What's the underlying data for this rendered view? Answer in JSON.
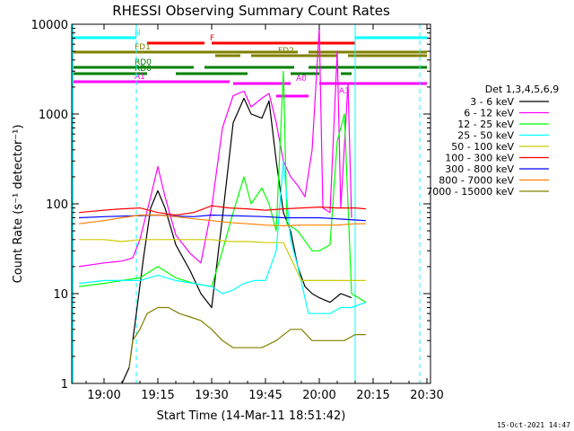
{
  "chart_data": {
    "type": "line",
    "title": "RHESSI Observing Summary Count Rates",
    "xlabel": "Start Time (14-Mar-11 18:51:42)",
    "ylabel": "Count Rate (s⁻¹ detector⁻¹)",
    "date_stamp": "15-Oct-2021 14:47",
    "x_unit": "minutes of day (HH:MM)",
    "xlim": [
      "18:51",
      "20:31"
    ],
    "ylim": [
      1,
      10000
    ],
    "yscale": "log",
    "grid": false,
    "legend_placement": "right",
    "legend_header": "Det 1,3,4,5,6,9",
    "x_ticks": [
      "19:00",
      "19:15",
      "19:30",
      "19:45",
      "20:00",
      "20:15",
      "20:30"
    ],
    "y_ticks": [
      "1",
      "10",
      "100",
      "1000",
      "10000"
    ],
    "series": [
      {
        "name": "3 - 6 keV",
        "color": "#000000",
        "points": [
          [
            "19:05",
            1
          ],
          [
            "19:07",
            1.5
          ],
          [
            "19:09",
            6
          ],
          [
            "19:11",
            25
          ],
          [
            "19:13",
            90
          ],
          [
            "19:15",
            140
          ],
          [
            "19:17",
            90
          ],
          [
            "19:20",
            35
          ],
          [
            "19:24",
            18
          ],
          [
            "19:27",
            10
          ],
          [
            "19:30",
            7
          ],
          [
            "19:33",
            70
          ],
          [
            "19:36",
            800
          ],
          [
            "19:39",
            1500
          ],
          [
            "19:41",
            1000
          ],
          [
            "19:44",
            900
          ],
          [
            "19:46",
            1400
          ],
          [
            "19:48",
            300
          ],
          [
            "19:50",
            80
          ],
          [
            "19:52",
            50
          ],
          [
            "19:54",
            20
          ],
          [
            "19:56",
            12
          ],
          [
            "19:58",
            10
          ],
          [
            "20:00",
            9
          ],
          [
            "20:03",
            8
          ],
          [
            "20:06",
            10
          ],
          [
            "20:09",
            9
          ]
        ]
      },
      {
        "name": "6 - 12 keV",
        "color": "#ff00ff",
        "points": [
          [
            "18:53",
            20
          ],
          [
            "19:00",
            22
          ],
          [
            "19:05",
            23
          ],
          [
            "19:08",
            25
          ],
          [
            "19:10",
            40
          ],
          [
            "19:13",
            120
          ],
          [
            "19:15",
            260
          ],
          [
            "19:17",
            120
          ],
          [
            "19:20",
            45
          ],
          [
            "19:24",
            28
          ],
          [
            "19:27",
            22
          ],
          [
            "19:30",
            90
          ],
          [
            "19:33",
            700
          ],
          [
            "19:36",
            1600
          ],
          [
            "19:39",
            1800
          ],
          [
            "19:41",
            1200
          ],
          [
            "19:44",
            1500
          ],
          [
            "19:46",
            1700
          ],
          [
            "19:48",
            800
          ],
          [
            "19:50",
            300
          ],
          [
            "19:52",
            200
          ],
          [
            "19:54",
            160
          ],
          [
            "19:56",
            120
          ],
          [
            "19:58",
            400
          ],
          [
            "20:00",
            9000
          ],
          [
            "20:01",
            90
          ],
          [
            "20:03",
            80
          ],
          [
            "20:05",
            5000
          ],
          [
            "20:06",
            90
          ],
          [
            "20:08",
            2200
          ],
          [
            "20:09",
            70
          ]
        ]
      },
      {
        "name": "12 - 25 keV",
        "color": "#00ff00",
        "points": [
          [
            "18:53",
            12
          ],
          [
            "19:00",
            13
          ],
          [
            "19:05",
            14
          ],
          [
            "19:10",
            15
          ],
          [
            "19:15",
            20
          ],
          [
            "19:20",
            15
          ],
          [
            "19:25",
            13
          ],
          [
            "19:30",
            12
          ],
          [
            "19:33",
            30
          ],
          [
            "19:36",
            80
          ],
          [
            "19:39",
            200
          ],
          [
            "19:41",
            100
          ],
          [
            "19:44",
            150
          ],
          [
            "19:46",
            100
          ],
          [
            "19:48",
            50
          ],
          [
            "19:50",
            3000
          ],
          [
            "19:51",
            60
          ],
          [
            "19:54",
            50
          ],
          [
            "19:58",
            30
          ],
          [
            "20:00",
            30
          ],
          [
            "20:03",
            35
          ],
          [
            "20:05",
            500
          ],
          [
            "20:07",
            1000
          ],
          [
            "20:09",
            10
          ],
          [
            "20:13",
            8
          ]
        ]
      },
      {
        "name": "25 - 50 keV",
        "color": "#00ffff",
        "points": [
          [
            "18:53",
            13
          ],
          [
            "19:00",
            14
          ],
          [
            "19:05",
            14
          ],
          [
            "19:10",
            14
          ],
          [
            "19:15",
            16
          ],
          [
            "19:20",
            14
          ],
          [
            "19:25",
            13
          ],
          [
            "19:30",
            12
          ],
          [
            "19:33",
            10
          ],
          [
            "19:36",
            11
          ],
          [
            "19:39",
            13
          ],
          [
            "19:42",
            14
          ],
          [
            "19:45",
            14
          ],
          [
            "19:48",
            30
          ],
          [
            "19:50",
            300
          ],
          [
            "19:52",
            40
          ],
          [
            "19:54",
            20
          ],
          [
            "19:57",
            6
          ],
          [
            "20:00",
            6
          ],
          [
            "20:03",
            6
          ],
          [
            "20:06",
            7
          ],
          [
            "20:09",
            7
          ],
          [
            "20:13",
            8
          ]
        ]
      },
      {
        "name": "50 - 100 keV",
        "color": "#cccc00",
        "points": [
          [
            "18:53",
            40
          ],
          [
            "19:00",
            40
          ],
          [
            "19:05",
            38
          ],
          [
            "19:10",
            40
          ],
          [
            "19:15",
            40
          ],
          [
            "19:20",
            40
          ],
          [
            "19:25",
            40
          ],
          [
            "19:30",
            40
          ],
          [
            "19:35",
            38
          ],
          [
            "19:40",
            38
          ],
          [
            "19:45",
            37
          ],
          [
            "19:50",
            37
          ],
          [
            "19:55",
            14
          ],
          [
            "20:00",
            14
          ],
          [
            "20:05",
            14
          ],
          [
            "20:10",
            14
          ],
          [
            "20:13",
            14
          ]
        ]
      },
      {
        "name": "100 - 300 keV",
        "color": "#ff0000",
        "points": [
          [
            "18:53",
            80
          ],
          [
            "19:00",
            85
          ],
          [
            "19:05",
            88
          ],
          [
            "19:10",
            90
          ],
          [
            "19:15",
            80
          ],
          [
            "19:20",
            75
          ],
          [
            "19:25",
            80
          ],
          [
            "19:30",
            95
          ],
          [
            "19:35",
            90
          ],
          [
            "19:40",
            88
          ],
          [
            "19:45",
            85
          ],
          [
            "19:50",
            88
          ],
          [
            "19:55",
            90
          ],
          [
            "20:00",
            92
          ],
          [
            "20:05",
            90
          ],
          [
            "20:10",
            90
          ],
          [
            "20:13",
            88
          ]
        ]
      },
      {
        "name": "300 - 800 keV",
        "color": "#0000ff",
        "points": [
          [
            "18:53",
            70
          ],
          [
            "19:00",
            72
          ],
          [
            "19:05",
            73
          ],
          [
            "19:10",
            74
          ],
          [
            "19:15",
            75
          ],
          [
            "19:20",
            73
          ],
          [
            "19:25",
            72
          ],
          [
            "19:30",
            75
          ],
          [
            "19:35",
            74
          ],
          [
            "19:40",
            73
          ],
          [
            "19:45",
            72
          ],
          [
            "19:50",
            70
          ],
          [
            "19:55",
            70
          ],
          [
            "20:00",
            70
          ],
          [
            "20:05",
            68
          ],
          [
            "20:10",
            66
          ],
          [
            "20:13",
            65
          ]
        ]
      },
      {
        "name": "800 - 7000 keV",
        "color": "#ff8000",
        "points": [
          [
            "18:53",
            60
          ],
          [
            "19:00",
            65
          ],
          [
            "19:05",
            70
          ],
          [
            "19:10",
            75
          ],
          [
            "19:15",
            75
          ],
          [
            "19:20",
            72
          ],
          [
            "19:25",
            68
          ],
          [
            "19:30",
            65
          ],
          [
            "19:35",
            62
          ],
          [
            "19:40",
            60
          ],
          [
            "19:45",
            58
          ],
          [
            "19:50",
            57
          ],
          [
            "19:55",
            58
          ],
          [
            "20:00",
            58
          ],
          [
            "20:05",
            58
          ],
          [
            "20:10",
            60
          ],
          [
            "20:13",
            60
          ]
        ]
      },
      {
        "name": "7000 - 15000 keV",
        "color": "#808000",
        "points": [
          [
            "19:07",
            1.5
          ],
          [
            "19:08",
            3
          ],
          [
            "19:10",
            4
          ],
          [
            "19:12",
            6
          ],
          [
            "19:15",
            7
          ],
          [
            "19:18",
            7
          ],
          [
            "19:21",
            6
          ],
          [
            "19:24",
            5.5
          ],
          [
            "19:27",
            5
          ],
          [
            "19:30",
            4
          ],
          [
            "19:33",
            3
          ],
          [
            "19:36",
            2.5
          ],
          [
            "19:40",
            2.5
          ],
          [
            "19:44",
            2.5
          ],
          [
            "19:48",
            3
          ],
          [
            "19:52",
            4
          ],
          [
            "19:55",
            4
          ],
          [
            "19:58",
            3
          ],
          [
            "20:01",
            3
          ],
          [
            "20:04",
            3
          ],
          [
            "20:07",
            3
          ],
          [
            "20:10",
            3.5
          ],
          [
            "20:13",
            3.5
          ]
        ]
      }
    ]
  },
  "flags": [
    {
      "label": "N",
      "color": "#00ffff"
    },
    {
      "label": "F",
      "color": "#ff0000"
    },
    {
      "label": "FD1",
      "color": "#808000"
    },
    {
      "label": "FD2",
      "color": "#808000"
    },
    {
      "label": "RD0",
      "color": "#008000"
    },
    {
      "label": "RD6",
      "color": "#008000"
    },
    {
      "label": "A1",
      "color": "#ff00ff"
    },
    {
      "label": "A0",
      "color": "#ff00ff"
    },
    {
      "label": "A3",
      "color": "#ff00ff"
    }
  ],
  "flag_spans": {
    "N": [
      [
        "18:51",
        "19:09"
      ],
      [
        "20:10",
        "20:30"
      ]
    ],
    "F": [
      [
        "19:12",
        "19:28"
      ],
      [
        "19:30",
        "20:10"
      ]
    ],
    "FD1": [
      [
        "18:51",
        "19:54"
      ],
      [
        "19:57",
        "20:30"
      ]
    ],
    "FD2": [
      [
        "19:31",
        "19:38"
      ],
      [
        "19:41",
        "20:05"
      ],
      [
        "20:08",
        "20:30"
      ]
    ],
    "RD0": [
      [
        "18:51",
        "19:25"
      ],
      [
        "19:28",
        "19:53"
      ],
      [
        "19:57",
        "20:30"
      ]
    ],
    "RD6": [
      [
        "18:51",
        "19:12"
      ],
      [
        "19:20",
        "19:40"
      ],
      [
        "19:52",
        "20:00"
      ],
      [
        "20:06",
        "20:09"
      ]
    ],
    "A1": [
      [
        "18:51",
        "19:35"
      ]
    ],
    "A0": [
      [
        "19:36",
        "19:52"
      ],
      [
        "20:00",
        "20:30"
      ]
    ],
    "A3": [
      [
        "19:48",
        "19:57"
      ]
    ]
  }
}
